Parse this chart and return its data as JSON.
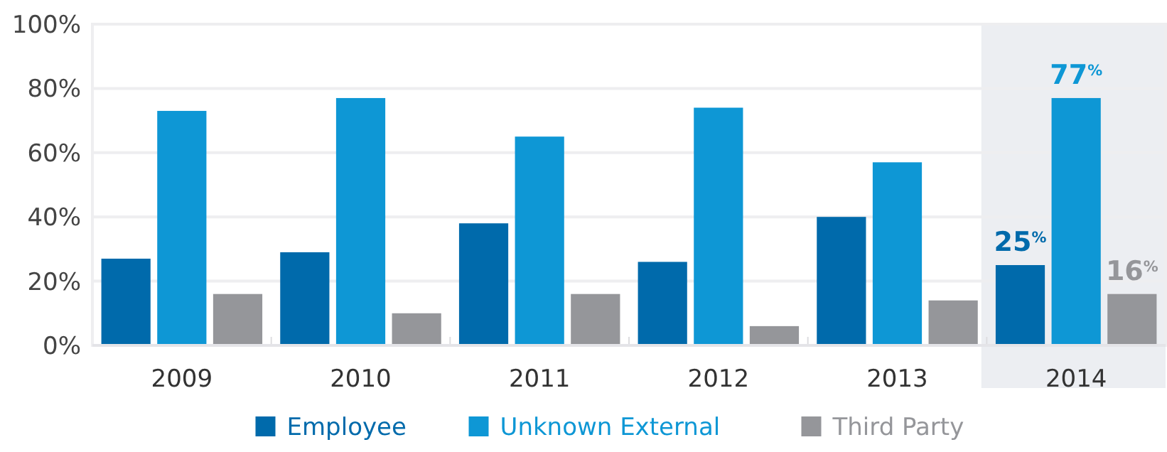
{
  "chart_data": {
    "type": "bar",
    "categories": [
      "2009",
      "2010",
      "2011",
      "2012",
      "2013",
      "2014"
    ],
    "series": [
      {
        "name": "Employee",
        "color": "#006aab",
        "values": [
          27,
          29,
          38,
          26,
          40,
          25
        ],
        "value_labels": [
          null,
          null,
          null,
          null,
          null,
          "25$^{%}$"
        ]
      },
      {
        "name": "Unknown External",
        "color": "#0e97d5",
        "values": [
          73,
          77,
          65,
          74,
          57,
          77
        ],
        "value_labels": [
          null,
          null,
          null,
          null,
          null,
          "77$^{%}$"
        ]
      },
      {
        "name": "Third Party",
        "color": "#95969a",
        "values": [
          16,
          10,
          16,
          6,
          14,
          16
        ],
        "value_labels": [
          null,
          null,
          null,
          null,
          null,
          "16$^{%}$"
        ]
      }
    ],
    "ylim": [
      0,
      100
    ],
    "yticks": [
      {
        "value": 0,
        "label": "0%"
      },
      {
        "value": 20,
        "label": "20%"
      },
      {
        "value": 40,
        "label": "40%"
      },
      {
        "value": 60,
        "label": "60%"
      },
      {
        "value": 80,
        "label": "80%"
      },
      {
        "value": 100,
        "label": "100%"
      }
    ],
    "grid": "y",
    "legend": "bottom",
    "bands": [
      {
        "axis": "x",
        "from": "2014",
        "to": "2014",
        "color": "#eceef2"
      }
    ]
  }
}
